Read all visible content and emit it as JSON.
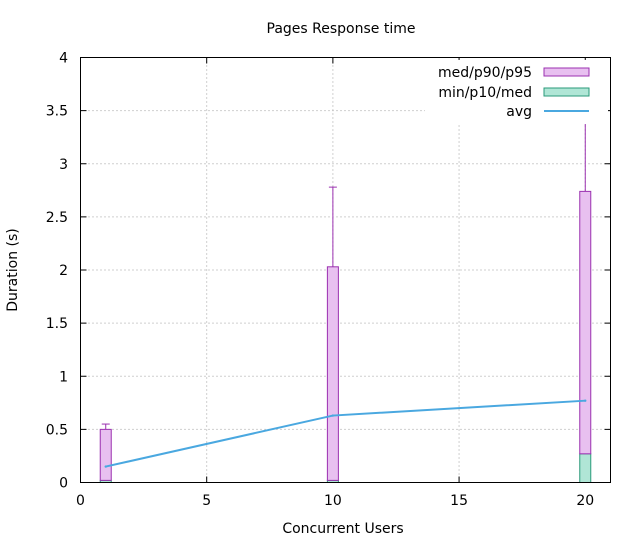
{
  "chart_data": {
    "type": "bar",
    "title": "Pages Response time",
    "xlabel": "Concurrent Users",
    "ylabel": "Duration (s)",
    "xlim": [
      0,
      21
    ],
    "ylim": [
      0,
      4
    ],
    "x_ticks": [
      0,
      5,
      10,
      15,
      20
    ],
    "x_tick_labels": [
      "0",
      "5",
      "10",
      "15",
      "20"
    ],
    "y_ticks": [
      0,
      0.5,
      1,
      1.5,
      2,
      2.5,
      3,
      3.5,
      4
    ],
    "y_tick_labels": [
      "0",
      "0.5",
      "1",
      "1.5",
      "2",
      "2.5",
      "3",
      "3.5",
      "4"
    ],
    "grid": true,
    "legend_position": "top-right",
    "legend": [
      {
        "label": "med/p90/p95",
        "kind": "box",
        "fill": "#e8c0f0",
        "stroke": "#9b30b0"
      },
      {
        "label": "min/p10/med",
        "kind": "box",
        "fill": "#b0e6d6",
        "stroke": "#2a9a7a"
      },
      {
        "label": "avg",
        "kind": "line",
        "stroke": "#4aa8e0"
      }
    ],
    "x": [
      1,
      10,
      20
    ],
    "series": [
      {
        "name": "min/p10/med",
        "min": [
          0.0,
          0.0,
          0.0
        ],
        "p10": [
          0.02,
          0.02,
          0.01
        ],
        "med": [
          0.02,
          0.02,
          0.27
        ]
      },
      {
        "name": "med/p90/p95",
        "med": [
          0.02,
          0.02,
          0.27
        ],
        "p90": [
          0.5,
          2.03,
          2.74
        ],
        "p95": [
          0.55,
          2.78,
          3.95
        ]
      },
      {
        "name": "avg",
        "values": [
          0.15,
          0.63,
          0.77
        ]
      }
    ],
    "colors": {
      "upper_fill": "#e8c0f0",
      "upper_stroke": "#9b30b0",
      "lower_fill": "#b0e6d6",
      "lower_stroke": "#2a9a7a",
      "avg": "#4aa8e0"
    }
  }
}
